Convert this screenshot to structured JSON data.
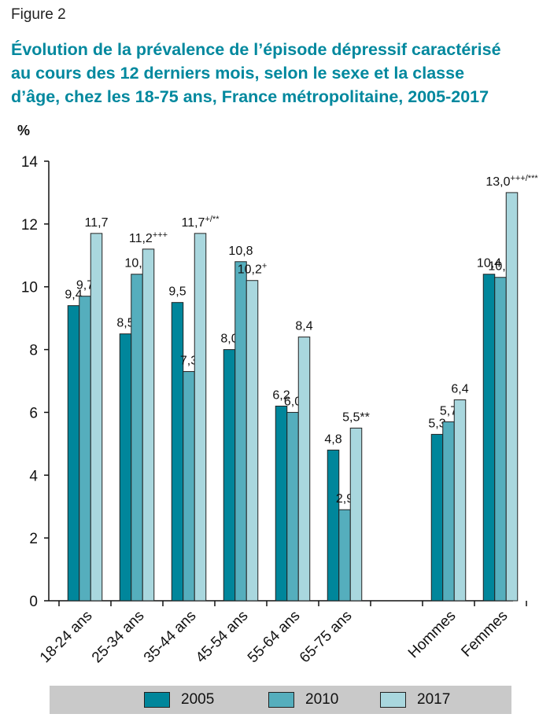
{
  "figure_label": "Figure 2",
  "title_lines": [
    "Évolution de la prévalence de l’épisode dépressif caractérisé",
    "au cours des 12 derniers mois, selon le sexe et la classe",
    "d’âge, chez les 18-75 ans, France métropolitaine, 2005-2017"
  ],
  "colors": {
    "title": "#00889e",
    "series": [
      "#00869b",
      "#55aebd",
      "#a9d7de"
    ],
    "axis": "#111111",
    "legend_bg": "#c9c9c9"
  },
  "chart_data": {
    "type": "bar",
    "ylabel": "%",
    "ylim": [
      0,
      14
    ],
    "yticks": [
      0,
      2,
      4,
      6,
      8,
      10,
      12,
      14
    ],
    "grid": false,
    "legend_position": "bottom",
    "categories": [
      "18-24 ans",
      "25-34 ans",
      "35-44 ans",
      "45-54 ans",
      "55-64 ans",
      "65-75 ans",
      "Hommes",
      "Femmes"
    ],
    "series": [
      {
        "name": "2005",
        "values": [
          9.4,
          8.5,
          9.5,
          8.0,
          6.2,
          4.8,
          5.3,
          10.4
        ],
        "labels": [
          {
            "t": "9,4"
          },
          {
            "t": "8,5"
          },
          {
            "t": "9,5"
          },
          {
            "t": "8,0"
          },
          {
            "t": "6,2"
          },
          {
            "t": "4,8"
          },
          {
            "t": "5,3"
          },
          {
            "t": "10,4"
          }
        ]
      },
      {
        "name": "2010",
        "values": [
          9.7,
          10.4,
          7.3,
          10.8,
          6.0,
          2.9,
          5.7,
          10.3
        ],
        "labels": [
          {
            "t": "9,7"
          },
          {
            "t": "10,4"
          },
          {
            "t": "7,3"
          },
          {
            "t": "10,8"
          },
          {
            "t": "6,0"
          },
          {
            "t": "2,9"
          },
          {
            "t": "5,7"
          },
          {
            "t": "10,3"
          }
        ]
      },
      {
        "name": "2017",
        "values": [
          11.7,
          11.2,
          11.7,
          10.2,
          8.4,
          5.5,
          6.4,
          13.0
        ],
        "labels": [
          {
            "t": "11,7"
          },
          {
            "t": "11,2",
            "sup": "+++"
          },
          {
            "t": "11,7",
            "sup": "+/**"
          },
          {
            "t": "10,2",
            "sup": "+"
          },
          {
            "t": "8,4"
          },
          {
            "t": "5,5**"
          },
          {
            "t": "6,4"
          },
          {
            "t": "13,0",
            "sup": "+++/***"
          }
        ]
      }
    ]
  }
}
